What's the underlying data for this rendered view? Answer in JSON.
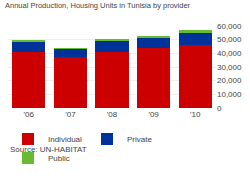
{
  "chart_data": {
    "type": "bar",
    "stacked": true,
    "title": "Annual Production, Housing Units in Tunisia by provider",
    "categories": [
      "'06",
      "'07",
      "'08",
      "'09",
      "'10"
    ],
    "series": [
      {
        "name": "Individual",
        "color": "#cc0000",
        "values": [
          41000,
          37000,
          41000,
          44000,
          46000
        ]
      },
      {
        "name": "Private",
        "color": "#003399",
        "values": [
          7500,
          6000,
          8000,
          7000,
          9000
        ]
      },
      {
        "name": "Public",
        "color": "#66bb33",
        "values": [
          1500,
          1000,
          1500,
          2000,
          2000
        ]
      }
    ],
    "ylim": [
      0,
      60000
    ],
    "yticks": [
      0,
      {
        "value": 10000,
        "label": "10,000"
      },
      {
        "value": 20000,
        "label": "20,000"
      },
      {
        "value": 30000,
        "label": "30,000"
      },
      {
        "value": 40000,
        "label": "40,000"
      },
      {
        "value": 50000,
        "label": "50,000"
      },
      {
        "value": 60000,
        "label": "60,000"
      }
    ],
    "grid": true,
    "legend": "lower left",
    "annotations": [
      "Source: UN-HABITAT"
    ]
  }
}
